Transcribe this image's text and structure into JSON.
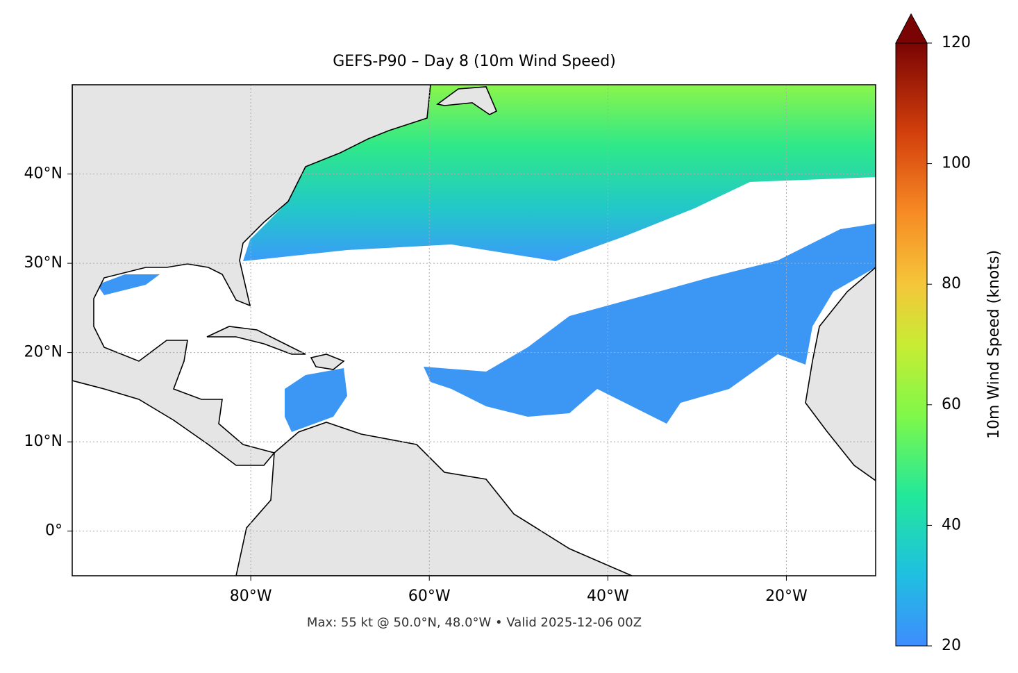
{
  "map": {
    "title": "GEFS-P90 – Day 8 (10m Wind Speed)",
    "lon_extent": [
      -100,
      -10
    ],
    "lat_extent": [
      -5,
      50
    ],
    "lon_ticks": [
      {
        "value": -80,
        "label": "80°W"
      },
      {
        "value": -60,
        "label": "60°W"
      },
      {
        "value": -40,
        "label": "40°W"
      },
      {
        "value": -20,
        "label": "20°W"
      }
    ],
    "lat_ticks": [
      {
        "value": 40,
        "label": "40°N"
      },
      {
        "value": 30,
        "label": "30°N"
      },
      {
        "value": 20,
        "label": "20°N"
      },
      {
        "value": 10,
        "label": "10°N"
      },
      {
        "value": 0,
        "label": "0°"
      }
    ],
    "grid": true,
    "footer": "Max: 55 kt @ 50.0°N, 48.0°W • Valid 2025-12-06 00Z",
    "colorbar": {
      "label": "10m Wind Speed (knots)",
      "lim": [
        20,
        120
      ],
      "ticks": [
        20,
        40,
        60,
        80,
        100,
        120
      ]
    }
  }
}
